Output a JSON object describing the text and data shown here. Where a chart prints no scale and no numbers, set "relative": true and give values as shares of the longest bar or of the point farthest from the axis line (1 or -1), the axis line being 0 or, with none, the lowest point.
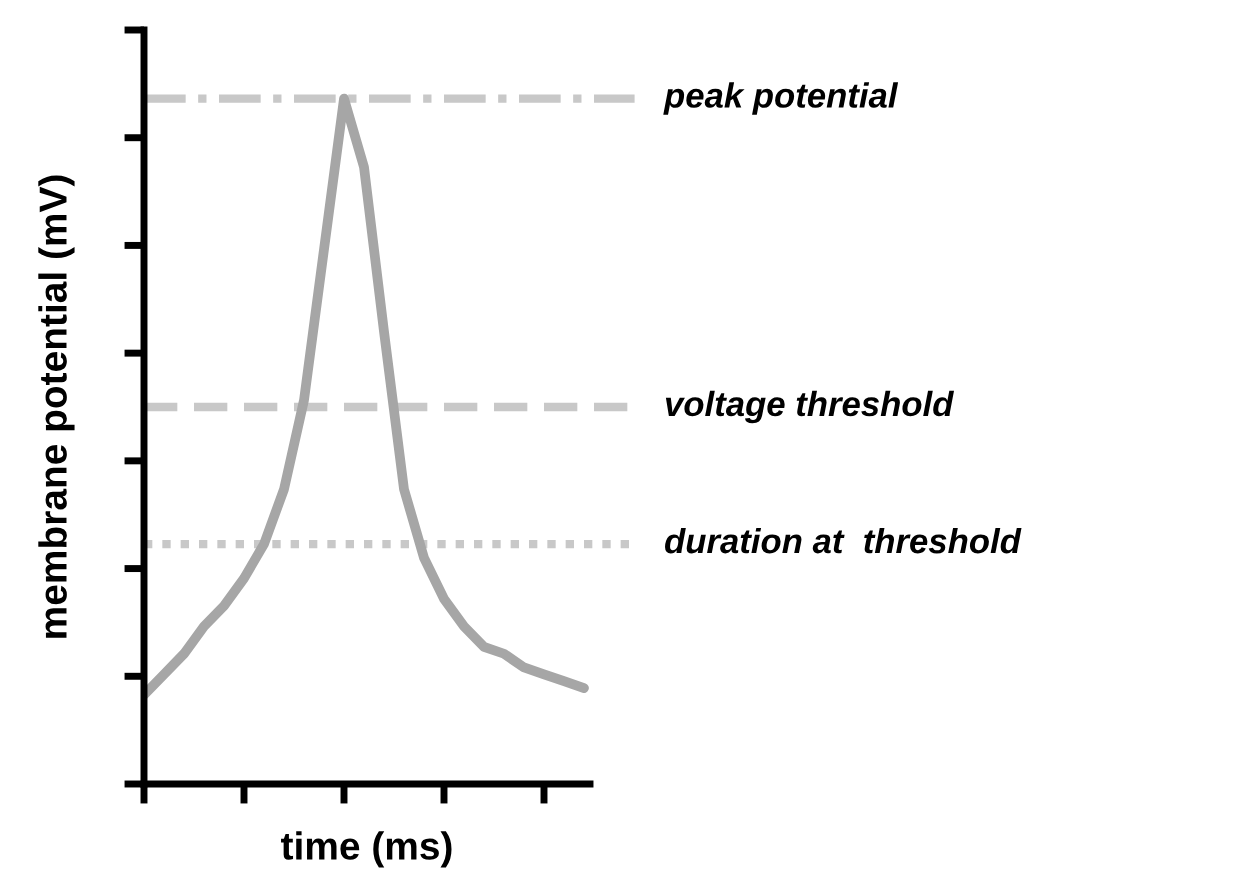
{
  "chart_data": {
    "type": "line",
    "relative": true,
    "xlabel": "time (ms)",
    "ylabel": "membrane potential (mV)",
    "categories": [
      null,
      null,
      null,
      null,
      null,
      null,
      null,
      null,
      null,
      null,
      null,
      null,
      null,
      null,
      null,
      null,
      null,
      null,
      null,
      null,
      null,
      null,
      null
    ],
    "series": [
      {
        "color": "#a6a6a6",
        "values": [
          0.13,
          0.16,
          0.19,
          0.23,
          0.26,
          0.3,
          0.35,
          0.43,
          0.56,
          0.78,
          1.0,
          0.9,
          0.66,
          0.43,
          0.33,
          0.27,
          0.23,
          0.2,
          0.19,
          0.17,
          0.16,
          0.15,
          0.14
        ]
      }
    ],
    "ref_lines": [
      {
        "axis": "y",
        "value": 1.0,
        "label": "peak potential",
        "color": "#c8c8c8",
        "line_style": "dashdot"
      },
      {
        "axis": "y",
        "value": 0.55,
        "label": "voltage threshold",
        "color": "#c8c8c8",
        "line_style": "dashed"
      },
      {
        "axis": "y",
        "value": 0.35,
        "label": "duration at  threshold",
        "color": "#c8c8c8",
        "line_style": "dotted"
      }
    ],
    "grid": false,
    "legend": false,
    "line_style": "solid",
    "marker": "none"
  }
}
